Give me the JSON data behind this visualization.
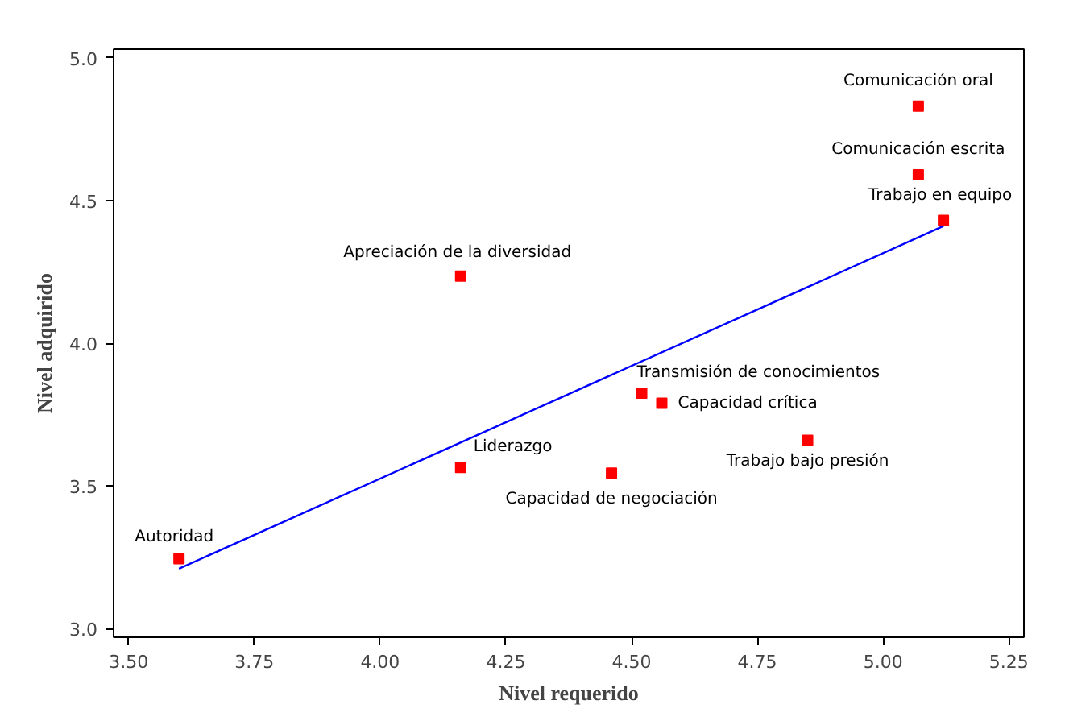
{
  "chart_data": {
    "type": "scatter",
    "xlabel": "Nivel requerido",
    "ylabel": "Nivel adquirido",
    "xlim": [
      3.47,
      5.28
    ],
    "ylim": [
      2.97,
      5.03
    ],
    "xticks": [
      {
        "value": 3.5,
        "label": "3.50"
      },
      {
        "value": 3.75,
        "label": "3.75"
      },
      {
        "value": 4.0,
        "label": "4.00"
      },
      {
        "value": 4.25,
        "label": "4.25"
      },
      {
        "value": 4.5,
        "label": "4.50"
      },
      {
        "value": 4.75,
        "label": "4.75"
      },
      {
        "value": 5.0,
        "label": "5.00"
      },
      {
        "value": 5.25,
        "label": "5.25"
      }
    ],
    "yticks": [
      {
        "value": 3.0,
        "label": "3.0"
      },
      {
        "value": 3.5,
        "label": "3.5"
      },
      {
        "value": 4.0,
        "label": "4.0"
      },
      {
        "value": 4.5,
        "label": "4.5"
      },
      {
        "value": 5.0,
        "label": "5.0"
      }
    ],
    "grid": false,
    "series": [
      {
        "marker": "square",
        "color": "#ff0000",
        "x": [
          3.6,
          4.16,
          4.16,
          4.46,
          4.52,
          4.56,
          4.85,
          5.07,
          5.07,
          5.12
        ],
        "values": [
          3.245,
          4.235,
          3.565,
          3.545,
          3.825,
          3.79,
          3.66,
          4.83,
          4.59,
          4.43
        ]
      },
      {
        "type": "line",
        "color": "#0000ff",
        "line_style": "solid",
        "x": [
          3.6,
          5.12
        ],
        "values": [
          3.21,
          4.41
        ]
      }
    ],
    "annotations": [
      {
        "text": "Autoridad",
        "x": 3.6,
        "y": 3.245
      },
      {
        "text": "Apreciación de la diversidad",
        "x": 4.16,
        "y": 4.235
      },
      {
        "text": "Liderazgo",
        "x": 4.16,
        "y": 3.565
      },
      {
        "text": "Capacidad de negociación",
        "x": 4.46,
        "y": 3.545
      },
      {
        "text": "Transmisión de conocimientos",
        "x": 4.52,
        "y": 3.825
      },
      {
        "text": "Capacidad crítica",
        "x": 4.56,
        "y": 3.79
      },
      {
        "text": "Trabajo bajo presión",
        "x": 4.85,
        "y": 3.66
      },
      {
        "text": "Comunicación oral",
        "x": 5.07,
        "y": 4.83
      },
      {
        "text": "Comunicación escrita",
        "x": 5.07,
        "y": 4.59
      },
      {
        "text": "Trabajo en equipo",
        "x": 5.12,
        "y": 4.43
      }
    ]
  }
}
